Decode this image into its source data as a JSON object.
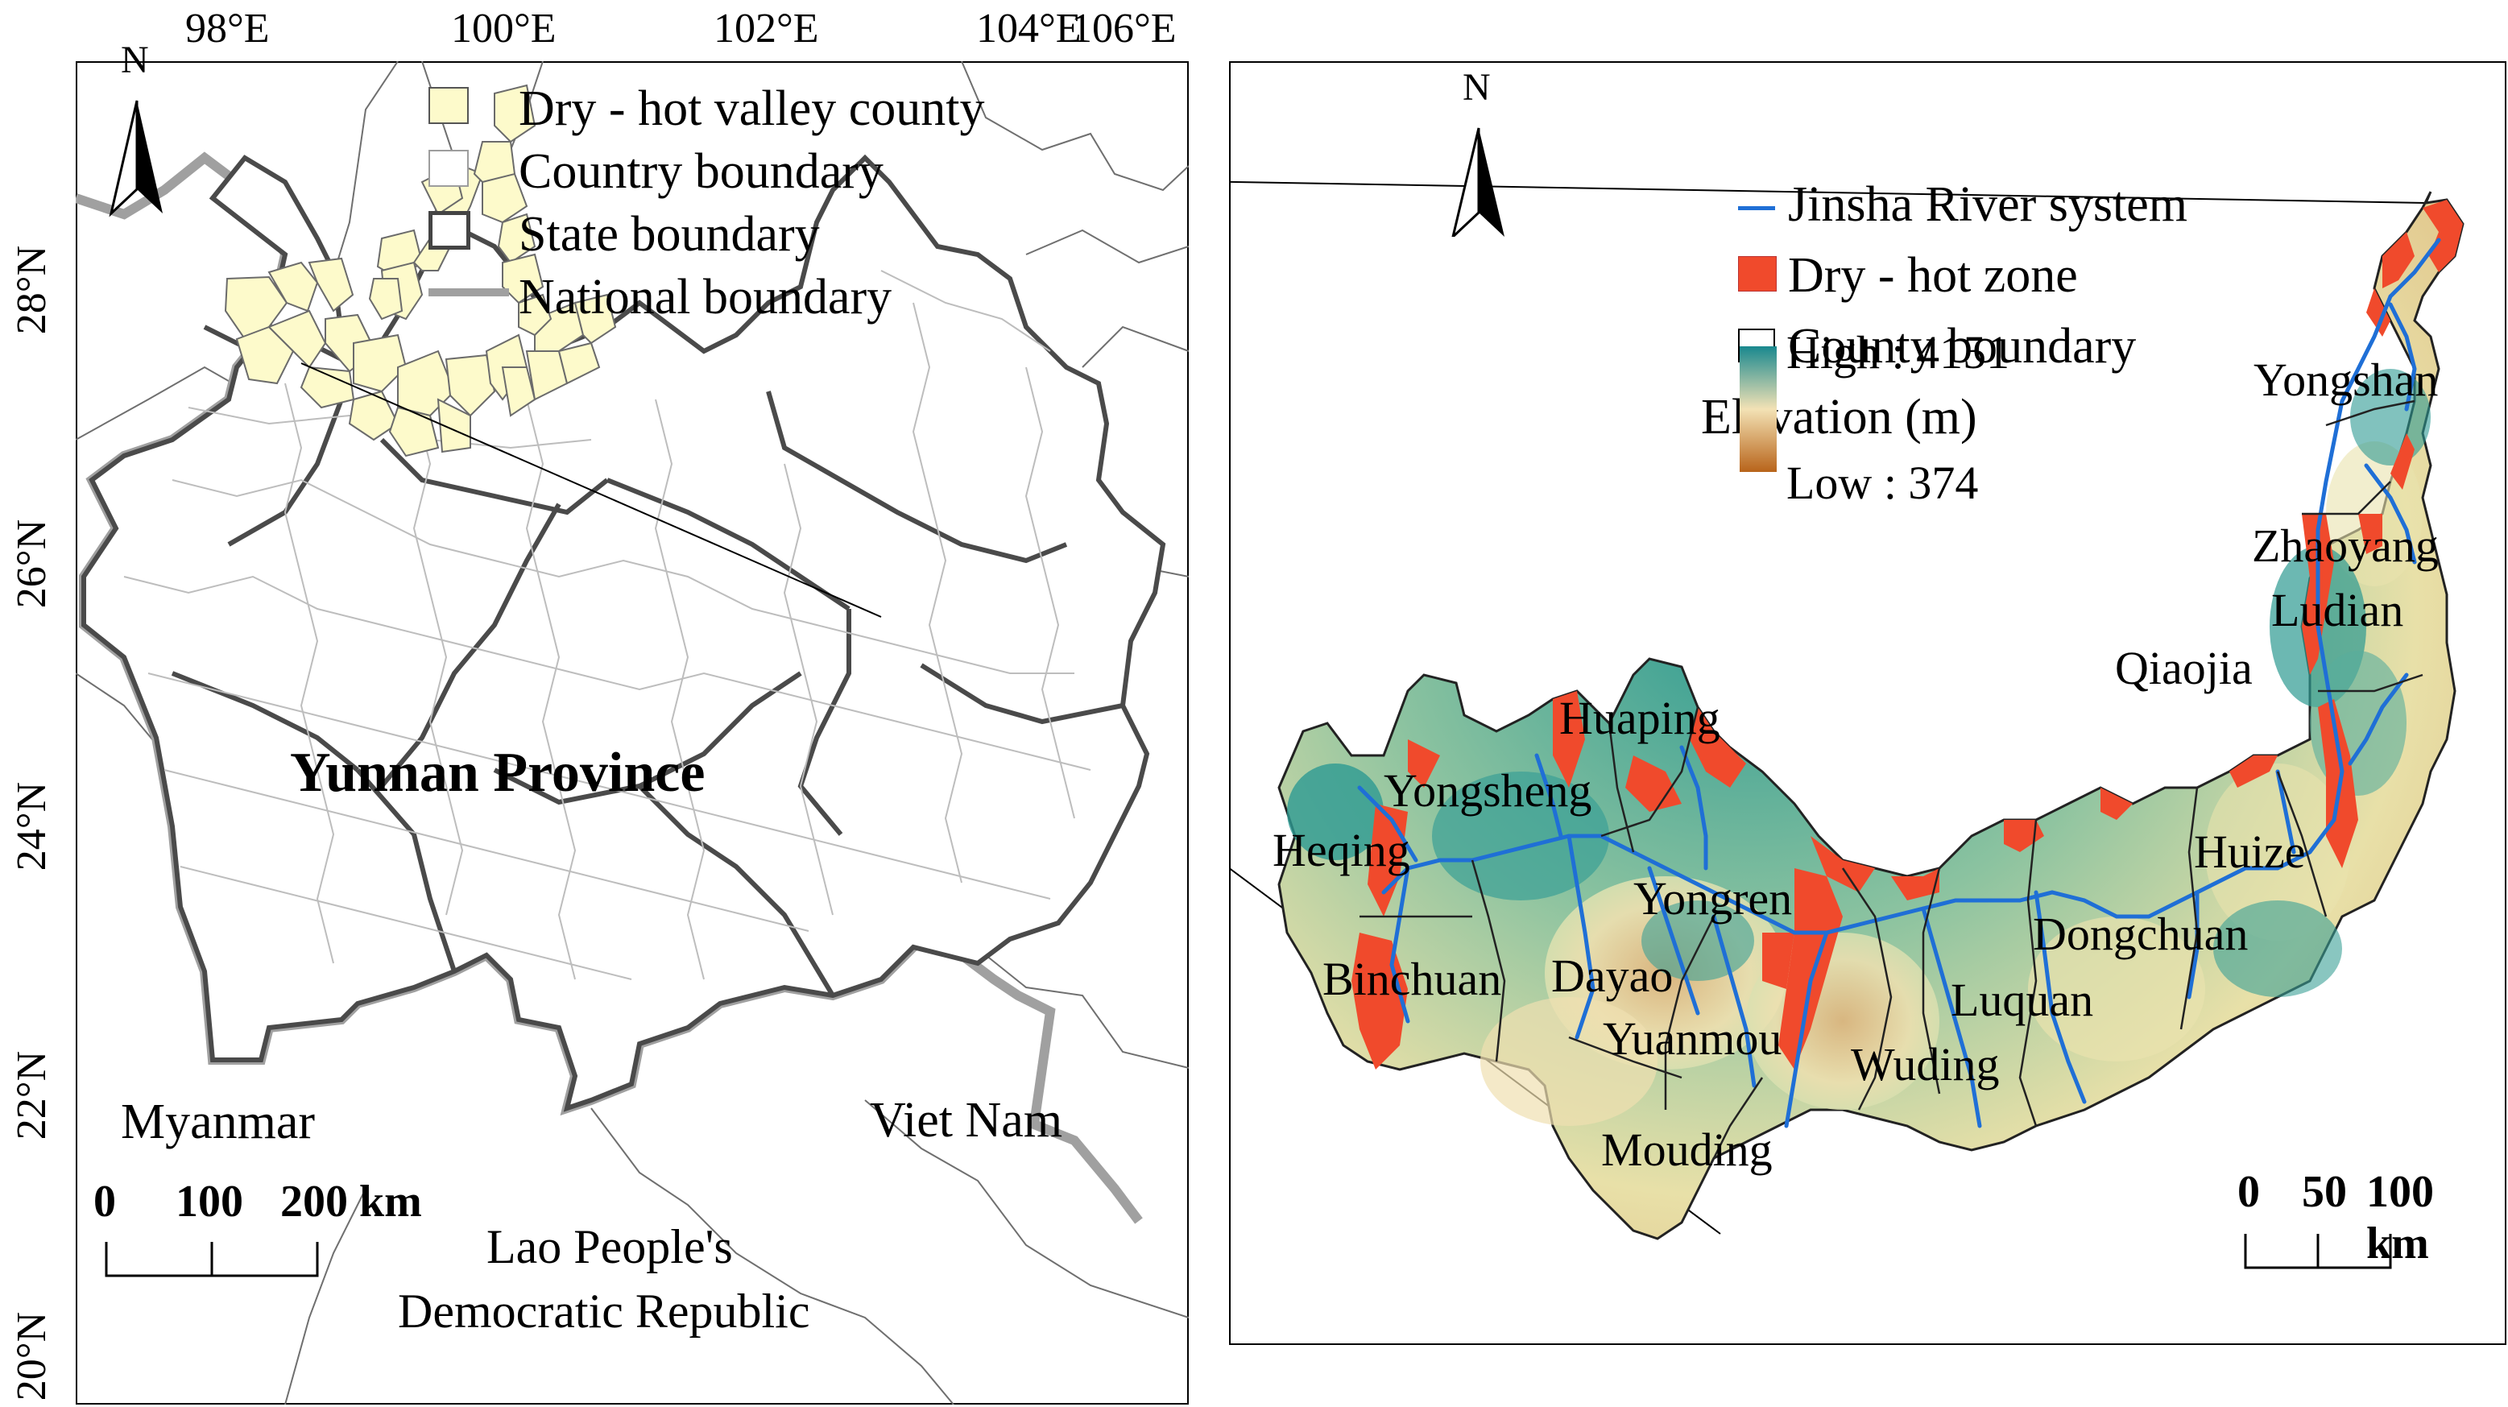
{
  "left_map": {
    "lon_ticks": [
      "98°E",
      "100°E",
      "102°E",
      "104°E",
      "106°E"
    ],
    "lat_ticks": [
      "28°N",
      "26°N",
      "24°N",
      "22°N",
      "20°N"
    ],
    "north_label": "N",
    "legend": [
      {
        "label": "Dry - hot valley county",
        "symbol": "yellow-fill",
        "color": "#fdfacb"
      },
      {
        "label": "Country boundary",
        "symbol": "thin-outline",
        "color": "#b8b8b8"
      },
      {
        "label": "State boundary",
        "symbol": "thick-outline",
        "color": "#444444"
      },
      {
        "label": "National boundary",
        "symbol": "grey-line",
        "color": "#9a9a9a"
      }
    ],
    "province_label": "Yunnan Province",
    "neighbours": [
      "Myanmar",
      "Viet Nam",
      "Lao People's",
      "Democratic Republic"
    ],
    "scale": {
      "ticks": [
        "0",
        "100",
        "200 km"
      ]
    }
  },
  "right_map": {
    "north_label": "N",
    "legend": [
      {
        "label": "Jinsha River system",
        "symbol": "blue-line",
        "color": "#1f6fd6"
      },
      {
        "label": "Dry - hot zone",
        "symbol": "red-fill",
        "color": "#f04a2c"
      },
      {
        "label": "County boundary",
        "symbol": "black-outline",
        "color": "#000000"
      }
    ],
    "elevation": {
      "title": "Elevation (m)",
      "high": "High : 4151",
      "low": "Low : 374",
      "ramp": [
        "#19888e",
        "#f3e2b5",
        "#b8641a"
      ]
    },
    "counties": [
      "Yongshan",
      "Zhaoyang",
      "Ludian",
      "Qiaojia",
      "Huaping",
      "Yongsheng",
      "Heqing",
      "Yongren",
      "Huize",
      "Dongchuan",
      "Binchuan",
      "Dayao",
      "Luquan",
      "Yuanmou",
      "Wuding",
      "Mouding"
    ],
    "scale": {
      "ticks": [
        "0",
        "50",
        "100 km"
      ]
    }
  }
}
